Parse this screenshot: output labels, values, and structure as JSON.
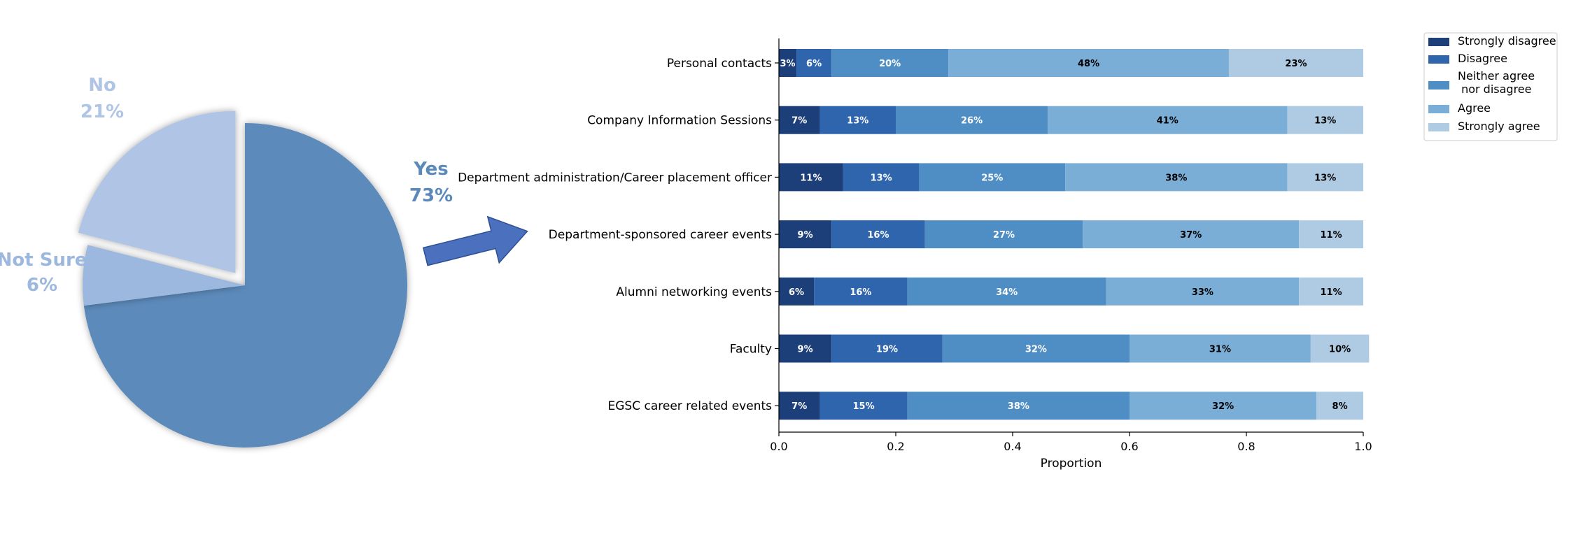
{
  "chart_data": [
    {
      "type": "pie",
      "slices": [
        {
          "label": "Yes",
          "pct_label": "73%",
          "value": 73,
          "color": "#5b8aba",
          "exploded": false
        },
        {
          "label": "Not Sure",
          "pct_label": "6%",
          "value": 6,
          "color": "#9cb8de",
          "exploded": false
        },
        {
          "label": "No",
          "pct_label": "21%",
          "value": 21,
          "color": "#b0c4e5",
          "exploded": true
        }
      ],
      "arrow_color": "#4a70be"
    },
    {
      "type": "bar",
      "orientation": "horizontal",
      "stacked": true,
      "xlabel": "Proportion",
      "xlim": [
        0,
        1
      ],
      "xticks": [
        "0.0",
        "0.2",
        "0.4",
        "0.6",
        "0.8",
        "1.0"
      ],
      "legend_position": "top-right",
      "categories": [
        "Personal contacts",
        "Company Information Sessions",
        "Department administration/Career placement officer",
        "Department-sponsored career events",
        "Alumni networking events",
        "Faculty",
        "EGSC career related events"
      ],
      "series": [
        {
          "name": "Strongly disagree",
          "legend_lines": [
            "Strongly disagree"
          ],
          "color": "#1c3f7a",
          "label_color": "#ffffff",
          "values": [
            0.03,
            0.07,
            0.11,
            0.09,
            0.06,
            0.09,
            0.07
          ],
          "labels": [
            "3%",
            "7%",
            "11%",
            "9%",
            "6%",
            "9%",
            "7%"
          ]
        },
        {
          "name": "Disagree",
          "legend_lines": [
            "Disagree"
          ],
          "color": "#2e65ad",
          "label_color": "#ffffff",
          "values": [
            0.06,
            0.13,
            0.13,
            0.16,
            0.16,
            0.19,
            0.15
          ],
          "labels": [
            "6%",
            "13%",
            "13%",
            "16%",
            "16%",
            "19%",
            "15%"
          ]
        },
        {
          "name": "Neither agree nor disagree",
          "legend_lines": [
            "Neither agree",
            " nor disagree"
          ],
          "color": "#4f8ec4",
          "label_color": "#ffffff",
          "values": [
            0.2,
            0.26,
            0.25,
            0.27,
            0.34,
            0.32,
            0.38
          ],
          "labels": [
            "20%",
            "26%",
            "25%",
            "27%",
            "34%",
            "32%",
            "38%"
          ]
        },
        {
          "name": "Agree",
          "legend_lines": [
            "Agree"
          ],
          "color": "#7aaed6",
          "label_color": "#000000",
          "values": [
            0.48,
            0.41,
            0.38,
            0.37,
            0.33,
            0.31,
            0.32
          ],
          "labels": [
            "48%",
            "41%",
            "38%",
            "37%",
            "33%",
            "31%",
            "32%"
          ]
        },
        {
          "name": "Strongly agree",
          "legend_lines": [
            "Strongly agree"
          ],
          "color": "#aecbe3",
          "label_color": "#000000",
          "values": [
            0.23,
            0.13,
            0.13,
            0.11,
            0.11,
            0.1,
            0.08
          ],
          "labels": [
            "23%",
            "13%",
            "13%",
            "11%",
            "11%",
            "10%",
            "8%"
          ]
        }
      ]
    }
  ]
}
